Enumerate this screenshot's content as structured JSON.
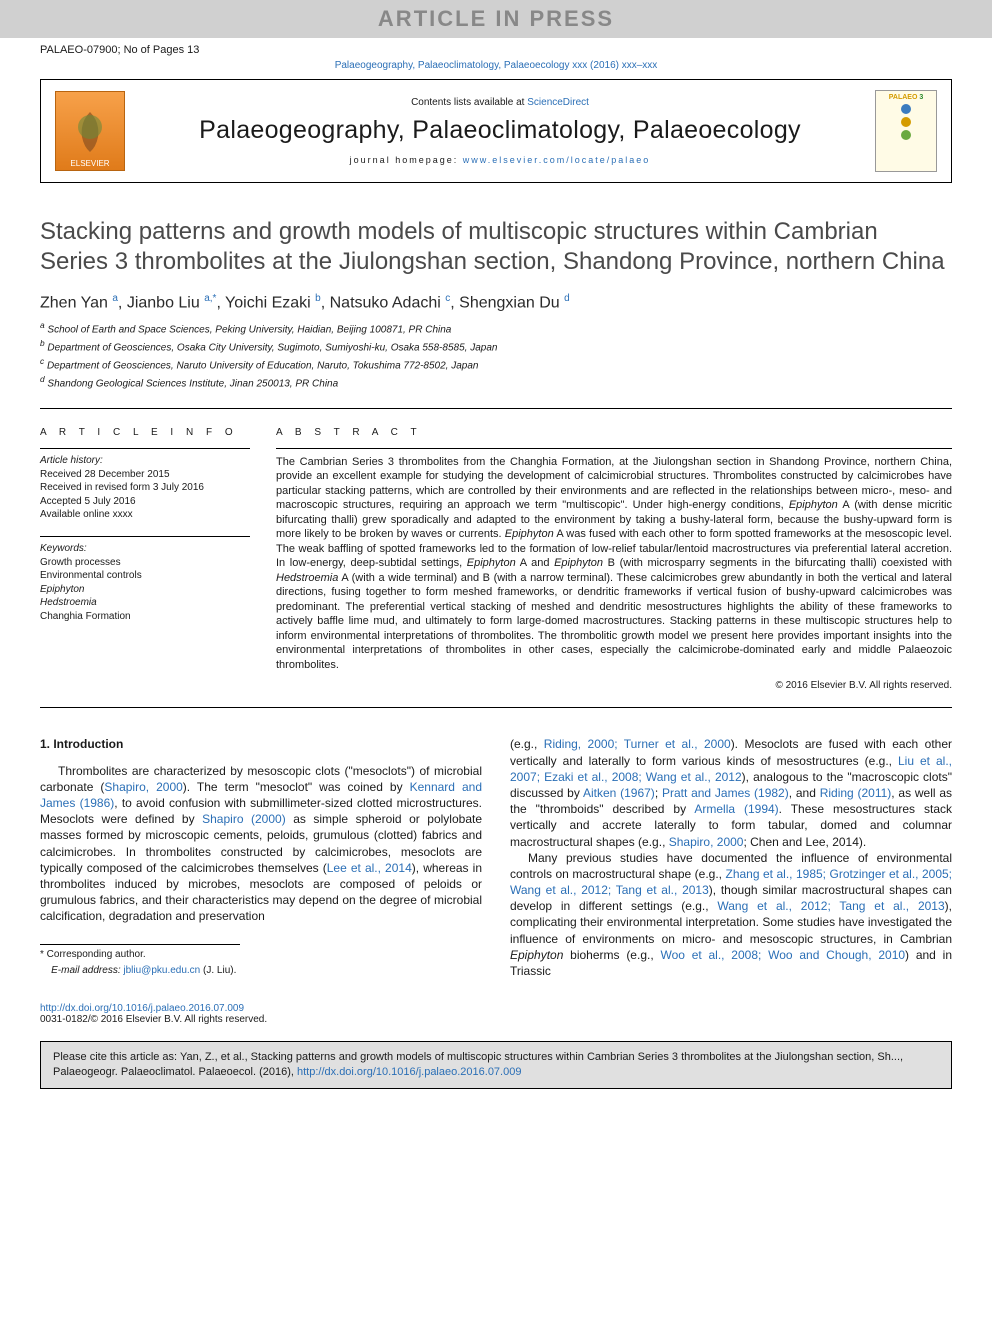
{
  "banner": "ARTICLE IN PRESS",
  "refLine": "PALAEO-07900; No of Pages 13",
  "journalRef": "Palaeogeography, Palaeoclimatology, Palaeoecology xxx (2016) xxx–xxx",
  "masthead": {
    "publisher": "ELSEVIER",
    "publisherColor": "#e07b1a",
    "contentsPrefix": "Contents lists available at ",
    "contentsLink": "ScienceDirect",
    "journalTitle": "Palaeogeography, Palaeoclimatology, Palaeoecology",
    "homepageLabel": "journal homepage: ",
    "homepageUrl": "www.elsevier.com/locate/palaeo",
    "coverLabel": "PALAEO",
    "coverDots": [
      "#3b7bbf",
      "#d49b00",
      "#6aa93f"
    ]
  },
  "title": "Stacking patterns and growth models of multiscopic structures within Cambrian Series 3 thrombolites at the Jiulongshan section, Shandong Province, northern China",
  "authors": [
    {
      "name": "Zhen Yan",
      "aff": "a"
    },
    {
      "name": "Jianbo Liu",
      "aff": "a,*"
    },
    {
      "name": "Yoichi Ezaki",
      "aff": "b"
    },
    {
      "name": "Natsuko Adachi",
      "aff": "c"
    },
    {
      "name": "Shengxian Du",
      "aff": "d"
    }
  ],
  "affiliations": [
    {
      "key": "a",
      "text": "School of Earth and Space Sciences, Peking University, Haidian, Beijing 100871, PR China"
    },
    {
      "key": "b",
      "text": "Department of Geosciences, Osaka City University, Sugimoto, Sumiyoshi-ku, Osaka 558-8585, Japan"
    },
    {
      "key": "c",
      "text": "Department of Geosciences, Naruto University of Education, Naruto, Tokushima 772-8502, Japan"
    },
    {
      "key": "d",
      "text": "Shandong Geological Sciences Institute, Jinan 250013, PR China"
    }
  ],
  "articleInfo": {
    "heading": "A R T I C L E   I N F O",
    "historyLabel": "Article history:",
    "history": [
      "Received 28 December 2015",
      "Received in revised form 3 July 2016",
      "Accepted 5 July 2016",
      "Available online xxxx"
    ],
    "keywordsLabel": "Keywords:",
    "keywords": [
      "Growth processes",
      "Environmental controls",
      "Epiphyton",
      "Hedstroemia",
      "Changhia Formation"
    ]
  },
  "abstract": {
    "heading": "A B S T R A C T",
    "body": "The Cambrian Series 3 thrombolites from the Changhia Formation, at the Jiulongshan section in Shandong Province, northern China, provide an excellent example for studying the development of calcimicrobial structures. Thrombolites constructed by calcimicrobes have particular stacking patterns, which are controlled by their environments and are reflected in the relationships between micro-, meso- and macroscopic structures, requiring an approach we term \"multiscopic\". Under high-energy conditions, Epiphyton A (with dense micritic bifurcating thalli) grew sporadically and adapted to the environment by taking a bushy-lateral form, because the bushy-upward form is more likely to be broken by waves or currents. Epiphyton A was fused with each other to form spotted frameworks at the mesoscopic level. The weak baffling of spotted frameworks led to the formation of low-relief tabular/lentoid macrostructures via preferential lateral accretion. In low-energy, deep-subtidal settings, Epiphyton A and Epiphyton B (with microsparry segments in the bifurcating thalli) coexisted with Hedstroemia A (with a wide terminal) and B (with a narrow terminal). These calcimicrobes grew abundantly in both the vertical and lateral directions, fusing together to form meshed frameworks, or dendritic frameworks if vertical fusion of bushy-upward calcimicrobes was predominant. The preferential vertical stacking of meshed and dendritic mesostructures highlights the ability of these frameworks to actively baffle lime mud, and ultimately to form large-domed macrostructures. Stacking patterns in these multiscopic structures help to inform environmental interpretations of thrombolites. The thrombolitic growth model we present here provides important insights into the environmental interpretations of thrombolites in other cases, especially the calcimicrobe-dominated early and middle Palaeozoic thrombolites.",
    "copyright": "© 2016 Elsevier B.V. All rights reserved."
  },
  "intro": {
    "heading": "1. Introduction",
    "col1p1": "Thrombolites are characterized by mesoscopic clots (\"mesoclots\") of microbial carbonate (Shapiro, 2000). The term \"mesoclot\" was coined by Kennard and James (1986), to avoid confusion with submillimeter-sized clotted microstructures. Mesoclots were defined by Shapiro (2000) as simple spheroid or polylobate masses formed by microscopic cements, peloids, grumulous (clotted) fabrics and calcimicrobes. In thrombolites constructed by calcimicrobes, mesoclots are typically composed of the calcimicrobes themselves (Lee et al., 2014), whereas in thrombolites induced by microbes, mesoclots are composed of peloids or grumulous fabrics, and their characteristics may depend on the degree of microbial calcification, degradation and preservation",
    "col2p1": "(e.g., Riding, 2000; Turner et al., 2000). Mesoclots are fused with each other vertically and laterally to form various kinds of mesostructures (e.g., Liu et al., 2007; Ezaki et al., 2008; Wang et al., 2012), analogous to the \"macroscopic clots\" discussed by Aitken (1967); Pratt and James (1982), and Riding (2011), as well as the \"thromboids\" described by Armella (1994). These mesostructures stack vertically and accrete laterally to form tabular, domed and columnar macrostructural shapes (e.g., Shapiro, 2000; Chen and Lee, 2014).",
    "col2p2": "Many previous studies have documented the influence of environmental controls on macrostructural shape (e.g., Zhang et al., 1985; Grotzinger et al., 2005; Wang et al., 2012; Tang et al., 2013), though similar macrostructural shapes can develop in different settings (e.g., Wang et al., 2012; Tang et al., 2013), complicating their environmental interpretation. Some studies have investigated the influence of environments on micro- and mesoscopic structures, in Cambrian Epiphyton bioherms (e.g., Woo et al., 2008; Woo and Chough, 2010) and in Triassic",
    "refs": {
      "shapiro2000": "Shapiro, 2000",
      "kj1986": "Kennard and James (1986)",
      "shapiro2000b": "Shapiro (2000)",
      "lee2014": "Lee et al., 2014",
      "riding2000": "Riding, 2000; Turner et al., 2000",
      "liu2007": "Liu et al., 2007; Ezaki et al., 2008; Wang et al., 2012",
      "aitken1967": "Aitken (1967)",
      "pratt1982": "Pratt and James (1982)",
      "riding2011": "Riding (2011)",
      "armella1994": "Armella (1994)",
      "shapiro2000c": "Shapiro, 2000; Chen and Lee, 2014",
      "zhang1985": "Zhang et al., 1985; Grotzinger et al., 2005; Wang et al., 2012; Tang et al., 2013",
      "wang2012": "Wang et al., 2012; Tang et al., 2013",
      "woo2008": "Woo et al., 2008; Woo and Chough, 2010"
    }
  },
  "footer": {
    "corrLabel": "* Corresponding author.",
    "emailLabel": "E-mail address: ",
    "email": "jbliu@pku.edu.cn",
    "emailSuffix": " (J. Liu).",
    "doi": "http://dx.doi.org/10.1016/j.palaeo.2016.07.009",
    "issn": "0031-0182/© 2016 Elsevier B.V. All rights reserved."
  },
  "citeBox": {
    "text": "Please cite this article as: Yan, Z., et al., Stacking patterns and growth models of multiscopic structures within Cambrian Series 3 thrombolites at the Jiulongshan section, Sh..., Palaeogeogr. Palaeoclimatol. Palaeoecol. (2016), ",
    "link": "http://dx.doi.org/10.1016/j.palaeo.2016.07.009"
  },
  "colors": {
    "link": "#2b6fb6",
    "bannerBg": "#d0d0d0",
    "bannerText": "#888888"
  }
}
